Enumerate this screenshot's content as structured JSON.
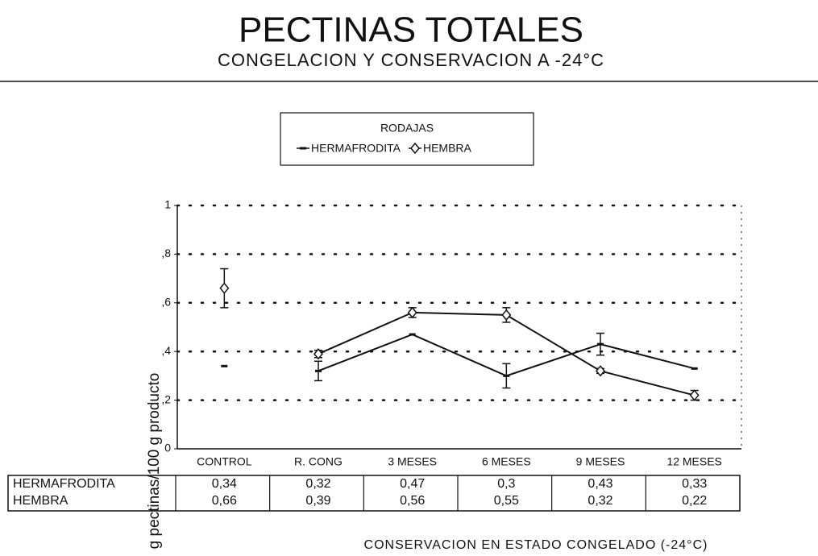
{
  "chart_data": {
    "type": "line",
    "title": "PECTINAS TOTALES",
    "subtitle": "CONGELACION Y CONSERVACION A -24°C",
    "legend_title": "RODAJAS",
    "y_label": "g pectinas/100 g producto",
    "x_label": "CONSERVACION EN ESTADO CONGELADO (-24°C)",
    "categories": [
      "CONTROL",
      "R. CONG",
      "3 MESES",
      "6 MESES",
      "9 MESES",
      "12 MESES"
    ],
    "line_from_index": 1,
    "series": [
      {
        "name": "HERMAFRODITA",
        "color": "#111111",
        "marker": "dash",
        "values": [
          0.34,
          0.32,
          0.47,
          0.3,
          0.43,
          0.33
        ],
        "value_labels": [
          "0,34",
          "0,32",
          "0,47",
          "0,3",
          "0,43",
          "0,33"
        ],
        "errors": [
          0,
          0.04,
          0,
          0.05,
          0.045,
          0
        ]
      },
      {
        "name": "HEMBRA",
        "color": "#111111",
        "marker": "diamond",
        "values": [
          0.66,
          0.39,
          0.56,
          0.55,
          0.32,
          0.22
        ],
        "value_labels": [
          "0,66",
          "0,39",
          "0,56",
          "0,55",
          "0,32",
          "0,22"
        ],
        "errors": [
          0.08,
          0.015,
          0.02,
          0.03,
          0.01,
          0.02
        ]
      }
    ],
    "ylim": [
      0,
      1
    ],
    "yticks": [
      0,
      {
        "value": 0.2,
        "label": ",2"
      },
      {
        "value": 0.4,
        "label": ",4"
      },
      {
        "value": 0.6,
        "label": ",6"
      },
      {
        "value": 0.8,
        "label": ",8"
      },
      1
    ],
    "grid": true
  }
}
